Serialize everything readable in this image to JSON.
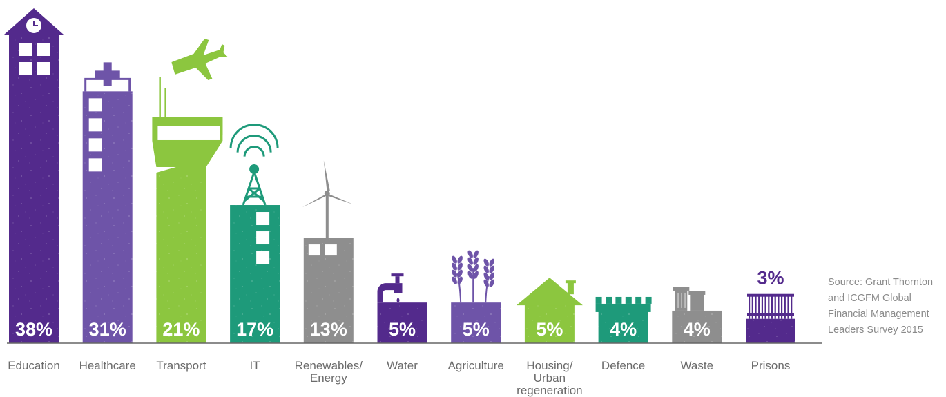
{
  "colors": {
    "purple_dark": "#532a8c",
    "purple_mid": "#6e54a8",
    "green": "#8cc63f",
    "teal": "#1e9a7a",
    "grey": "#8e8e8e",
    "axis": "#666666",
    "label": "#6b6b6b"
  },
  "source_note": "Source: Grant Thornton and ICGFM Global Financial Management Leaders Survey 2015",
  "chart_data": {
    "type": "bar",
    "ylim": [
      0,
      38
    ],
    "categories": [
      "Education",
      "Healthcare",
      "Transport",
      "IT",
      "Renewables/ Energy",
      "Water",
      "Agriculture",
      "Housing/ Urban regeneration",
      "Defence",
      "Waste",
      "Prisons"
    ],
    "values": [
      38,
      31,
      21,
      17,
      13,
      5,
      5,
      5,
      4,
      4,
      3
    ],
    "value_labels": [
      "38%",
      "31%",
      "21%",
      "17%",
      "13%",
      "5%",
      "5%",
      "5%",
      "4%",
      "4%",
      "3%"
    ],
    "bar_colors": [
      "#532a8c",
      "#6e54a8",
      "#8cc63f",
      "#1e9a7a",
      "#8e8e8e",
      "#532a8c",
      "#6e54a8",
      "#8cc63f",
      "#1e9a7a",
      "#8e8e8e",
      "#532a8c"
    ],
    "icons": [
      "school-clock-tower-icon",
      "hospital-cross-icon",
      "airport-control-tower-icon",
      "telecom-tower-icon",
      "wind-turbine-icon",
      "water-tap-icon",
      "wheat-icon",
      "house-icon",
      "castle-battlement-icon",
      "waste-bin-icon",
      "prison-bars-icon"
    ]
  }
}
